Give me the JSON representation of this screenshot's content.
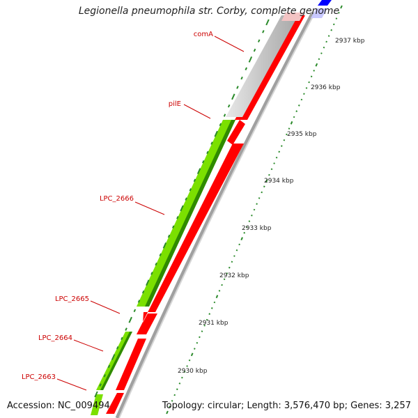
{
  "title": "Legionella pneumophila str. Corby, complete genome",
  "accession": "Accession: NC_009494",
  "summary": "Topology: circular; Length: 3,576,470 bp; Genes: 3,257",
  "colors": {
    "forward_gene": "#7be000",
    "forward_gene_dark": "#2f8a00",
    "reverse_gene": "#ff0000",
    "other_feature": "#c8c8c8",
    "rna": "#0000ff",
    "backbone": "#999999",
    "tick": "#2a8a2a",
    "label": "#cc0000"
  },
  "scale_ticks": [
    "2937 kbp",
    "2936 kbp",
    "2935 kbp",
    "2934 kbp",
    "2933 kbp",
    "2932 kbp",
    "2931 kbp",
    "2930 kbp"
  ],
  "gene_labels": [
    "comA",
    "pilE",
    "LPC_2666",
    "LPC_2665",
    "LPC_2664",
    "LPC_2663"
  ]
}
